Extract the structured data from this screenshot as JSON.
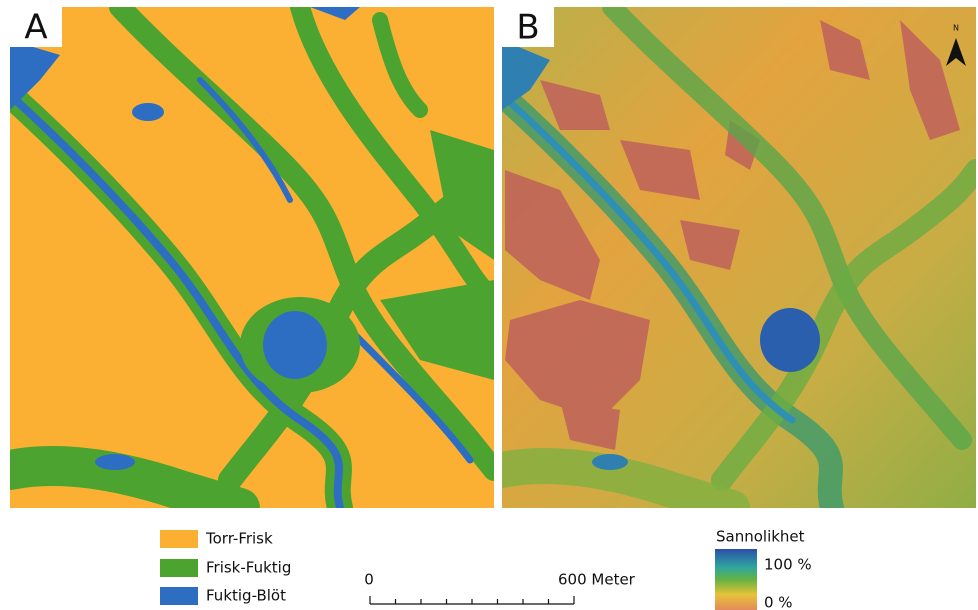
{
  "panels": [
    {
      "label": "A"
    },
    {
      "label": "B"
    }
  ],
  "north": "N",
  "legend": {
    "items": [
      {
        "label": "Torr-Frisk",
        "color": "#fbb034"
      },
      {
        "label": "Frisk-Fuktig",
        "color": "#4da32f"
      },
      {
        "label": "Fuktig-Blöt",
        "color": "#2e6ec2"
      }
    ]
  },
  "scale_bar": {
    "start": "0",
    "end": "600 Meter"
  },
  "colorbar": {
    "title": "Sannolikhet",
    "max": "100 %",
    "min": "0 %"
  }
}
